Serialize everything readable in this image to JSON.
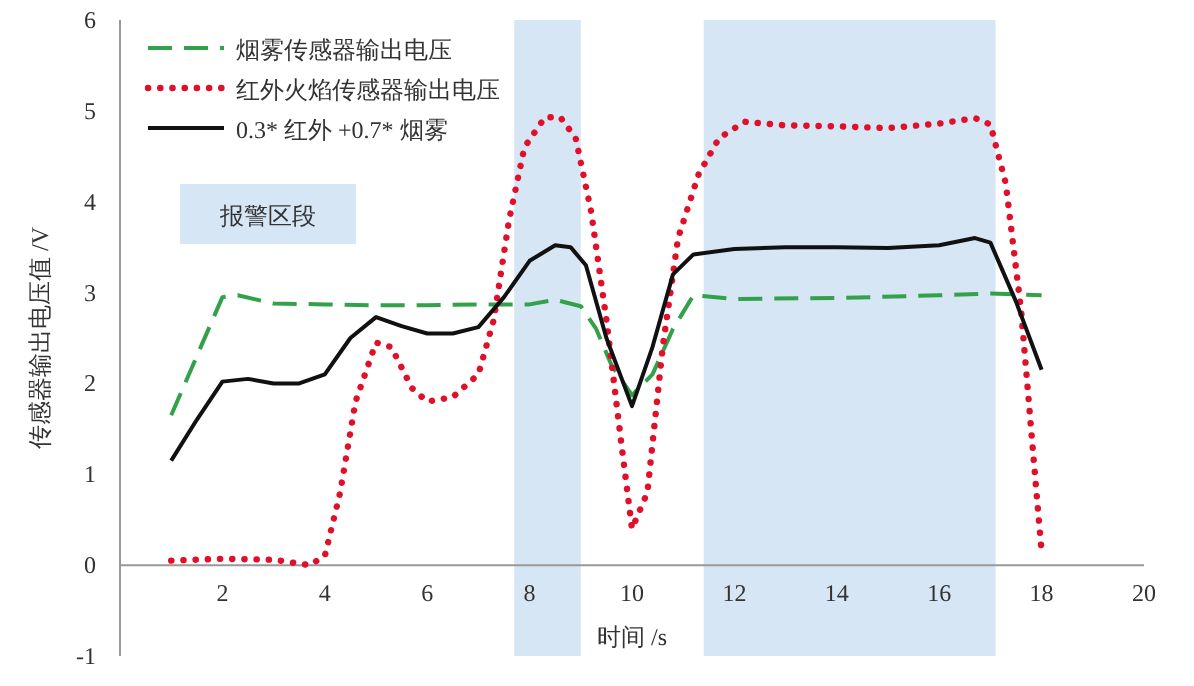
{
  "chart_data": {
    "type": "line",
    "xlabel": "时间 /s",
    "ylabel": "传感器输出电压值 /V",
    "xlim": [
      0,
      20
    ],
    "ylim": [
      -1,
      6
    ],
    "xticks": [
      2,
      4,
      6,
      8,
      10,
      12,
      14,
      16,
      18,
      20
    ],
    "yticks": [
      -1,
      0,
      1,
      2,
      3,
      4,
      5,
      6
    ],
    "legend": "top left",
    "annotations": [
      "报警区段"
    ],
    "bands": [
      {
        "axis": "x",
        "from": 7.7,
        "to": 9.0,
        "color": "#d6e6f4"
      },
      {
        "axis": "x",
        "from": 11.4,
        "to": 17.1,
        "color": "#d6e6f4"
      }
    ],
    "series": [
      {
        "name": "烟雾传感器输出电压",
        "color": "#33a04a",
        "line_style": "dashed",
        "x": [
          1,
          2,
          2.3,
          3,
          4,
          5,
          6,
          7,
          7.5,
          8,
          8.5,
          9,
          9.3,
          9.6,
          10,
          10.4,
          10.8,
          11.2,
          12,
          14,
          16,
          17,
          18
        ],
        "values": [
          1.65,
          2.95,
          2.97,
          2.88,
          2.87,
          2.86,
          2.86,
          2.87,
          2.87,
          2.87,
          2.92,
          2.85,
          2.6,
          2.2,
          1.87,
          2.1,
          2.6,
          2.97,
          2.93,
          2.94,
          2.97,
          2.99,
          2.97
        ]
      },
      {
        "name": "红外火焰传感器输出电压",
        "color": "#e0102a",
        "line_style": "dotted",
        "x": [
          1,
          2,
          3,
          3.7,
          4,
          4.3,
          4.6,
          5,
          5.3,
          5.7,
          6,
          6.5,
          7,
          7.3,
          7.6,
          7.9,
          8.3,
          8.6,
          8.9,
          9.2,
          9.5,
          9.8,
          10,
          10.3,
          10.6,
          10.9,
          11.3,
          11.7,
          12.2,
          13,
          14,
          15,
          16,
          16.7,
          17,
          17.3,
          17.6,
          17.9,
          18
        ],
        "values": [
          0.05,
          0.07,
          0.06,
          0.0,
          0.1,
          0.8,
          1.8,
          2.45,
          2.4,
          1.95,
          1.8,
          1.85,
          2.1,
          2.7,
          3.8,
          4.6,
          4.93,
          4.93,
          4.7,
          3.9,
          2.7,
          1.3,
          0.4,
          0.8,
          2.4,
          3.6,
          4.3,
          4.7,
          4.88,
          4.84,
          4.83,
          4.81,
          4.86,
          4.92,
          4.85,
          4.2,
          2.8,
          0.8,
          0.15
        ]
      },
      {
        "name": "0.3* 红外 +0.7* 烟雾",
        "color": "#111111",
        "line_style": "solid",
        "x": [
          1,
          1.5,
          2,
          2.5,
          3,
          3.5,
          4,
          4.5,
          5,
          5.5,
          6,
          6.5,
          7,
          7.5,
          8,
          8.5,
          8.8,
          9.1,
          9.5,
          10,
          10.4,
          10.8,
          11.2,
          12,
          13,
          14,
          15,
          16,
          16.7,
          17,
          17.5,
          18
        ],
        "values": [
          1.15,
          1.6,
          2.02,
          2.05,
          2.0,
          2.0,
          2.1,
          2.5,
          2.73,
          2.63,
          2.55,
          2.55,
          2.62,
          2.95,
          3.35,
          3.52,
          3.5,
          3.3,
          2.5,
          1.75,
          2.4,
          3.2,
          3.42,
          3.48,
          3.5,
          3.5,
          3.49,
          3.52,
          3.6,
          3.55,
          2.9,
          2.15
        ]
      }
    ]
  }
}
